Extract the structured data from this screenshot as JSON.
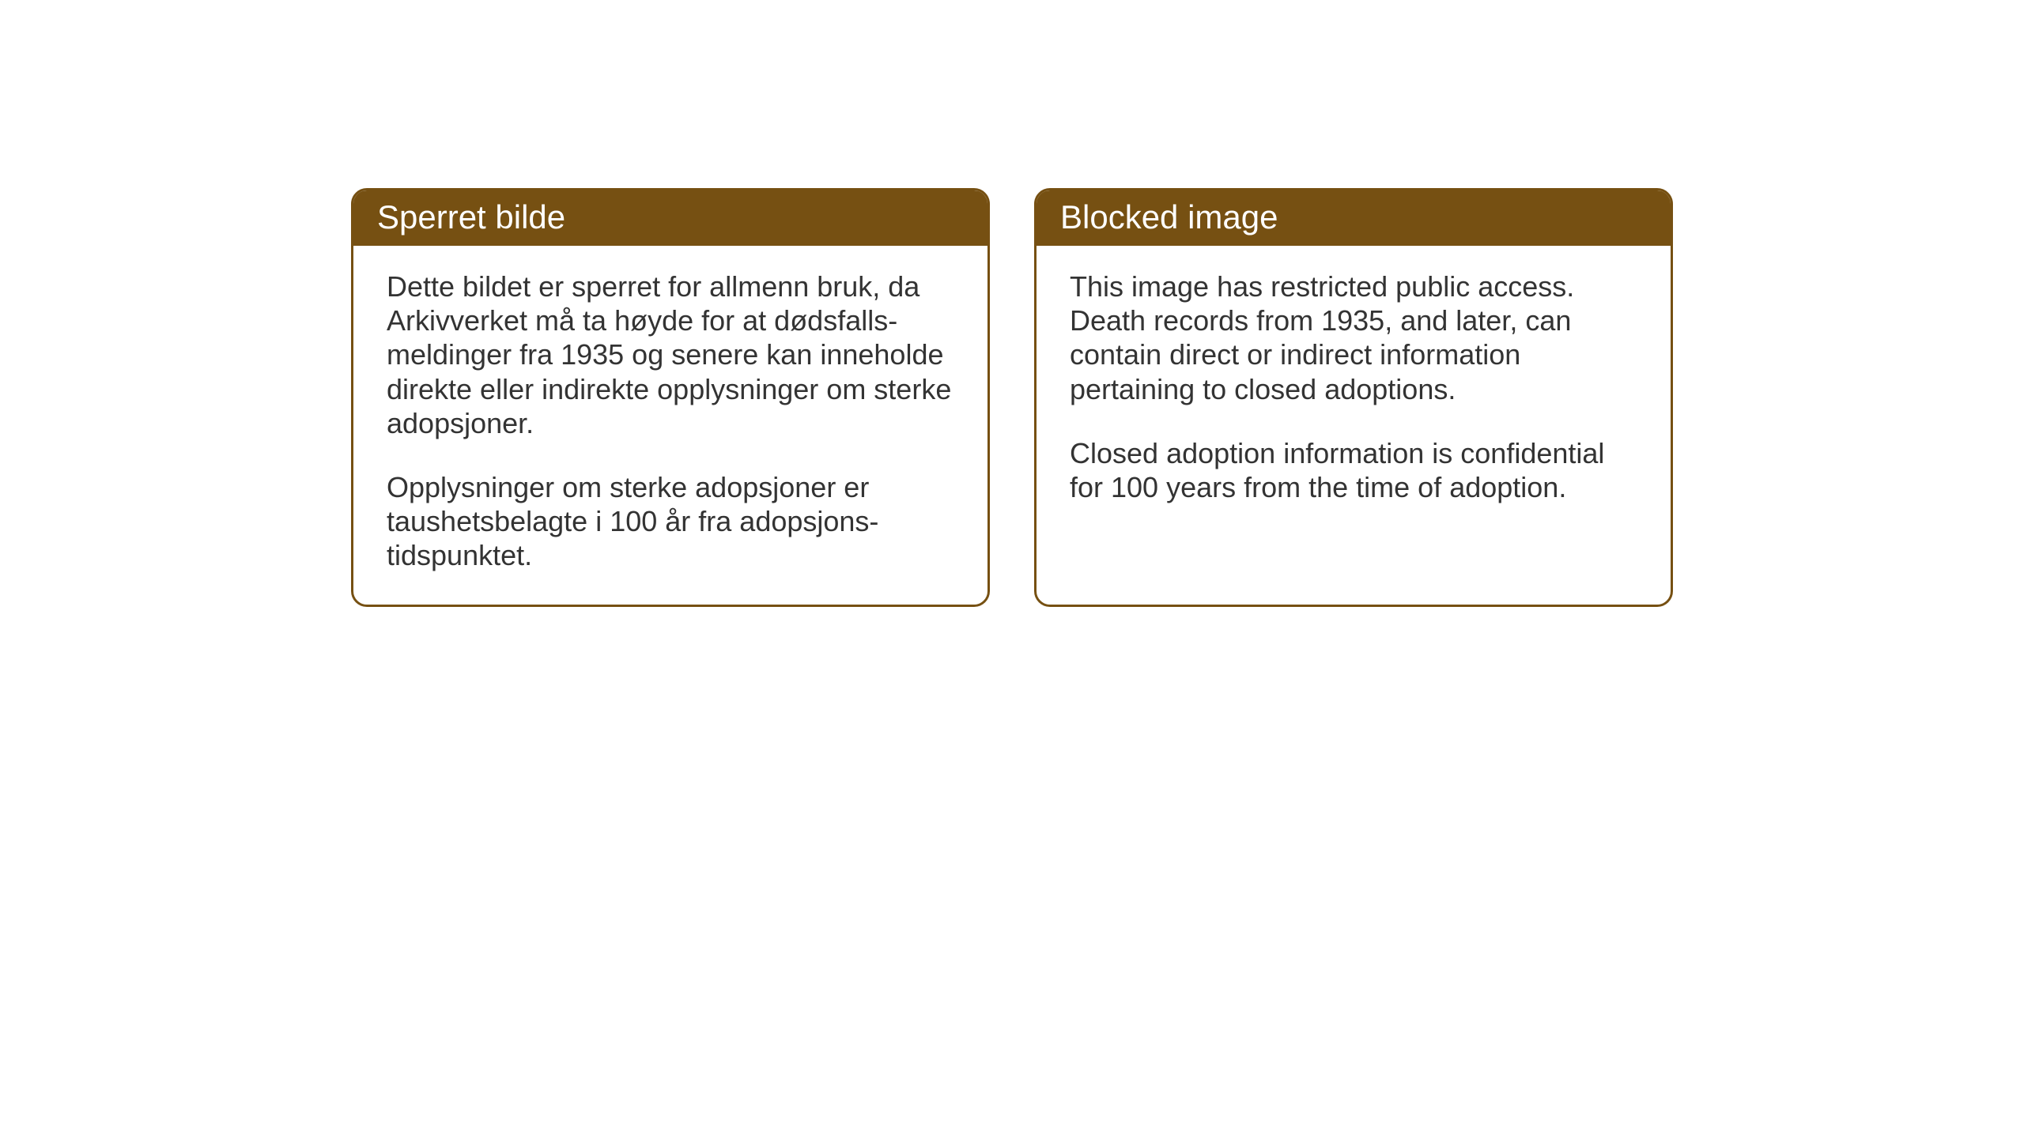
{
  "cards": {
    "norwegian": {
      "title": "Sperret bilde",
      "paragraph1": "Dette bildet er sperret for allmenn bruk, da Arkivverket må ta høyde for at dødsfalls-meldinger fra 1935 og senere kan inneholde direkte eller indirekte opplysninger om sterke adopsjoner.",
      "paragraph2": "Opplysninger om sterke adopsjoner er taushetsbelagte i 100 år fra adopsjons-tidspunktet."
    },
    "english": {
      "title": "Blocked image",
      "paragraph1": "This image has restricted public access. Death records from 1935, and later, can contain direct or indirect information pertaining to closed adoptions.",
      "paragraph2": "Closed adoption information is confidential for 100 years from the time of adoption."
    }
  },
  "styling": {
    "header_bg_color": "#765012",
    "header_text_color": "#ffffff",
    "border_color": "#765012",
    "body_text_color": "#333333",
    "background_color": "#ffffff",
    "border_radius": 20,
    "header_fontsize": 42,
    "body_fontsize": 36
  }
}
